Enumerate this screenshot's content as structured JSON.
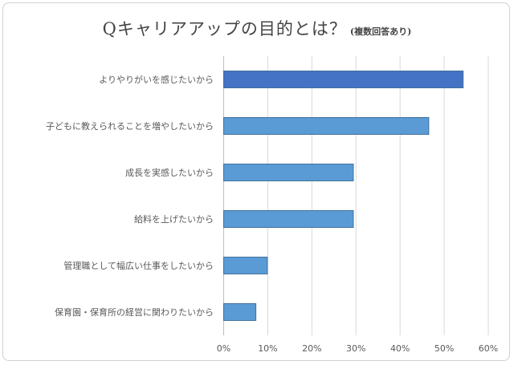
{
  "chart_data": {
    "type": "bar",
    "orientation": "horizontal",
    "title": "Qキャリアアップの目的とは？",
    "subtitle": "(複数回答あり)",
    "categories": [
      "よりやりがいを感じたいから",
      "子どもに教えられることを増やしたいから",
      "成長を実感したいから",
      "給料を上げたいから",
      "管理職として幅広い仕事をしたいから",
      "保育園・保育所の経営に関わりたいから"
    ],
    "values": [
      54.3,
      46.5,
      29.4,
      29.4,
      9.9,
      7.3
    ],
    "xlim": [
      0,
      60
    ],
    "xticks": [
      "0%",
      "10%",
      "20%",
      "30%",
      "40%",
      "50%",
      "60%"
    ],
    "grid": true,
    "xlabel": "",
    "ylabel": "",
    "colors": {
      "highlight": "#4472c4",
      "bar": "#5b9bd5",
      "border": "#41719c",
      "grid": "#d9d9d9"
    }
  }
}
